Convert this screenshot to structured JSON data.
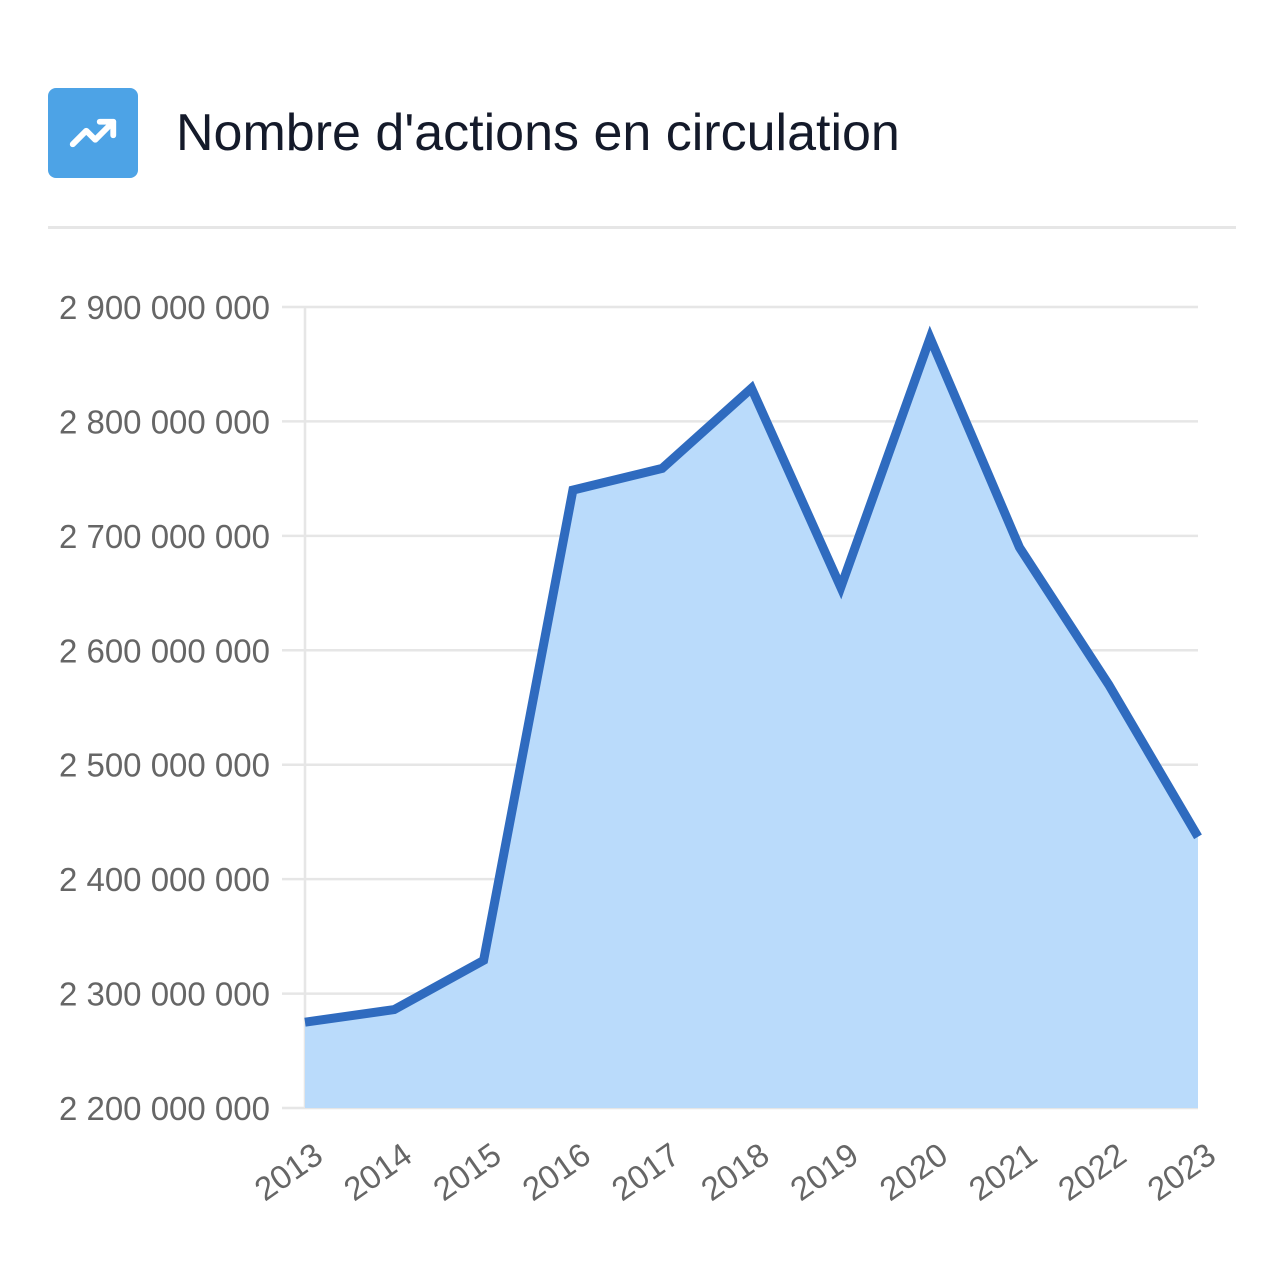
{
  "header": {
    "icon": "trending-up-icon",
    "title": "Nombre d'actions en circulation"
  },
  "colors": {
    "icon_background": "#4da3e6",
    "line": "#2f6bbf",
    "area_fill": "#badbfb",
    "grid": "#e6e6e6",
    "tick_text": "#666666"
  },
  "chart_data": {
    "type": "area",
    "title": "Nombre d'actions en circulation",
    "x": [
      "2013",
      "2014",
      "2015",
      "2016",
      "2017",
      "2018",
      "2019",
      "2020",
      "2021",
      "2022",
      "2023"
    ],
    "values": [
      2275000000,
      2286000000,
      2329000000,
      2740000000,
      2759000000,
      2829000000,
      2655000000,
      2873000000,
      2690000000,
      2570000000,
      2437000000
    ],
    "ylim": [
      2200000000,
      2900000000
    ],
    "y_ticks": [
      2200000000,
      2300000000,
      2400000000,
      2500000000,
      2600000000,
      2700000000,
      2800000000,
      2900000000
    ],
    "y_tick_labels": [
      "2 200 000 000",
      "2 300 000 000",
      "2 400 000 000",
      "2 500 000 000",
      "2 600 000 000",
      "2 700 000 000",
      "2 800 000 000",
      "2 900 000 000"
    ],
    "grid": true,
    "xlabel": "",
    "ylabel": ""
  }
}
